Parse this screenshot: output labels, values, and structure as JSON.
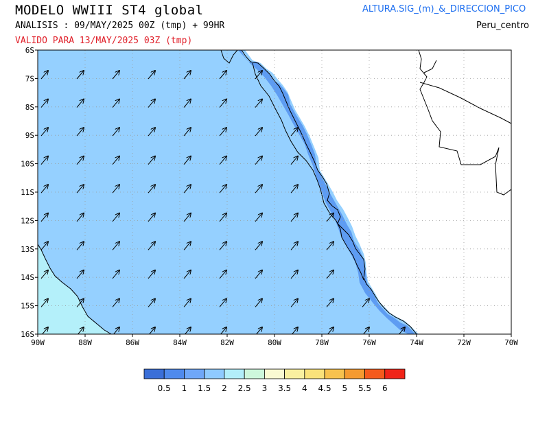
{
  "header": {
    "title": "MODELO WWIII ST4 global",
    "analysis": "ANALISIS : 09/MAY/2025 00Z  (tmp) + 99HR",
    "valid": "VALIDO PARA  13/MAY/2025 03Z  (tmp)",
    "variable": "ALTURA.SIG_(m)_&_DIRECCION_PICO",
    "region": "Peru_centro"
  },
  "map": {
    "lon_range": [
      -90,
      -70
    ],
    "lat_range": [
      -16,
      -6
    ],
    "x_ticks": [
      "90W",
      "88W",
      "86W",
      "84W",
      "82W",
      "80W",
      "78W",
      "76W",
      "74W",
      "72W",
      "70W"
    ],
    "y_ticks": [
      "6S",
      "7S",
      "8S",
      "9S",
      "10S",
      "11S",
      "12S",
      "13S",
      "14S",
      "15S",
      "16S"
    ],
    "grid": true,
    "fill_colors": {
      "land": "#ffffff",
      "wave_0_5_1": "#5e9cf2",
      "wave_1_5_2": "#95d0ff",
      "wave_2_2_5": "#b4f0fa"
    }
  },
  "colorbar": {
    "labels": [
      "0.5",
      "1",
      "1.5",
      "2",
      "2.5",
      "3",
      "3.5",
      "4",
      "4.5",
      "5",
      "5.5",
      "6"
    ],
    "colors": [
      "#3a6fd8",
      "#4f8aec",
      "#6fa7f8",
      "#8fcaff",
      "#b2eefa",
      "#cdf7dc",
      "#fafad2",
      "#faf0a0",
      "#fae27a",
      "#f7c24e",
      "#f59a30",
      "#f55a1c",
      "#f02418"
    ]
  }
}
